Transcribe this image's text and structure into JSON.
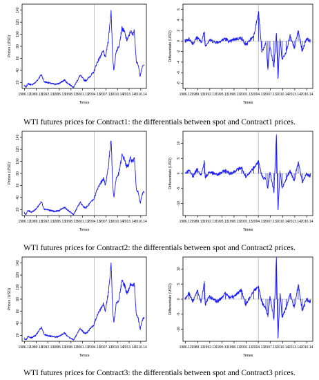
{
  "captions": [
    "WTI futures prices for Contract1: the differentials between spot and Contract1 prices.",
    "WTI futures prices for Contract2: the differentials between spot and Contract2 prices.",
    "WTI futures prices for Contract3: the differentials between spot and Contract3 prices."
  ],
  "chart_data": [
    {
      "type": "line",
      "panel": "price",
      "contract": "Contract1",
      "xlabel": "Times",
      "ylabel": "Prices (USD)",
      "ylim": [
        10,
        150
      ],
      "yticks": [
        20,
        40,
        60,
        80,
        100,
        120,
        140
      ],
      "xticks": [
        "1986.12",
        "1989.13",
        "1992.13",
        "1995.13",
        "1998.13",
        "2001.13",
        "2004.13",
        "2007.13",
        "2010.14",
        "2013.14",
        "2016.14"
      ],
      "vline_at": "2004.13",
      "series": [
        {
          "color": "#1a1aff",
          "x": [
            1986.0,
            1986.5,
            1987.0,
            1988.0,
            1989.0,
            1990.5,
            1990.8,
            1991.2,
            1992.0,
            1993.0,
            1994.0,
            1995.0,
            1996.5,
            1997.0,
            1998.8,
            1999.5,
            2000.5,
            2001.5,
            2002.0,
            2003.0,
            2004.0,
            2004.8,
            2005.7,
            2006.5,
            2007.0,
            2007.8,
            2008.5,
            2008.9,
            2009.2,
            2009.8,
            2010.5,
            2011.3,
            2012.0,
            2012.5,
            2013.0,
            2013.5,
            2014.0,
            2014.5,
            2015.0,
            2015.5,
            2016.0,
            2016.5,
            2017.0
          ],
          "y": [
            15,
            12,
            18,
            16,
            20,
            33,
            28,
            21,
            20,
            18,
            17,
            18,
            24,
            20,
            12,
            20,
            32,
            24,
            23,
            30,
            37,
            52,
            63,
            72,
            60,
            92,
            140,
            60,
            40,
            72,
            80,
            110,
            103,
            90,
            95,
            105,
            100,
            105,
            55,
            48,
            30,
            45,
            50
          ]
        }
      ]
    },
    {
      "type": "line",
      "panel": "differentials",
      "contract": "Contract1",
      "xlabel": "Times",
      "ylabel": "Differentials (USD)",
      "ylim": [
        -9,
        7
      ],
      "yticks": [
        -8,
        -6,
        -4,
        -2,
        0,
        2,
        4,
        6
      ],
      "xticks": [
        "1986.12",
        "1989.13",
        "1992.13",
        "1995.13",
        "1998.13",
        "2001.13",
        "2004.13",
        "2007.13",
        "2010.14",
        "2013.14",
        "2016.14"
      ],
      "vline_at": "2004.13",
      "series": [
        {
          "color": "#1a1aff",
          "x": [
            1986.0,
            1987.0,
            1988.0,
            1989.0,
            1990.0,
            1990.8,
            1991.0,
            1992.0,
            1994.0,
            1996.0,
            1997.0,
            1998.0,
            2000.0,
            2001.0,
            2003.0,
            2004.2,
            2005.0,
            2006.0,
            2006.5,
            2007.0,
            2008.0,
            2008.6,
            2009.0,
            2009.5,
            2010.0,
            2011.0,
            2012.0,
            2013.0,
            2014.0,
            2015.0,
            2016.0,
            2017.0
          ],
          "y": [
            0,
            0.4,
            -0.5,
            0.8,
            -0.3,
            1.8,
            -1.0,
            0.2,
            -0.3,
            0.5,
            -0.2,
            0.3,
            0.6,
            -0.8,
            1.0,
            5.5,
            -2.0,
            -0.5,
            -5.5,
            -1.0,
            -5.0,
            1.5,
            -7.2,
            0.5,
            -3.5,
            -2.0,
            1.0,
            -1.5,
            2.0,
            -2.0,
            0.5,
            0
          ]
        }
      ]
    },
    {
      "type": "line",
      "panel": "price",
      "contract": "Contract2",
      "xlabel": "Times",
      "ylabel": "Prices (USD)",
      "ylim": [
        10,
        150
      ],
      "yticks": [
        20,
        40,
        60,
        80,
        100,
        120,
        140
      ],
      "xticks": [
        "1986.12",
        "1989.13",
        "1992.13",
        "1995.13",
        "1998.13",
        "2001.13",
        "2004.13",
        "2007.13",
        "2010.14",
        "2013.14",
        "2016.14"
      ],
      "vline_at": "2004.13",
      "series": [
        {
          "color": "#1a1aff",
          "x": [
            1986.0,
            1986.5,
            1987.0,
            1988.0,
            1989.0,
            1990.5,
            1990.8,
            1991.2,
            1992.0,
            1993.0,
            1994.0,
            1995.0,
            1996.5,
            1997.0,
            1998.8,
            1999.5,
            2000.5,
            2001.5,
            2002.0,
            2003.0,
            2004.0,
            2004.8,
            2005.7,
            2006.5,
            2007.0,
            2007.8,
            2008.5,
            2008.9,
            2009.2,
            2009.8,
            2010.5,
            2011.3,
            2012.0,
            2012.5,
            2013.0,
            2013.5,
            2014.0,
            2014.5,
            2015.0,
            2015.5,
            2016.0,
            2016.5,
            2017.0
          ],
          "y": [
            15,
            12,
            18,
            16,
            20,
            33,
            28,
            21,
            20,
            18,
            17,
            18,
            24,
            20,
            12,
            20,
            32,
            24,
            23,
            30,
            37,
            52,
            63,
            72,
            60,
            92,
            140,
            60,
            40,
            72,
            80,
            110,
            103,
            90,
            95,
            105,
            100,
            105,
            55,
            48,
            30,
            45,
            50
          ]
        }
      ]
    },
    {
      "type": "line",
      "panel": "differentials",
      "contract": "Contract2",
      "xlabel": "Times",
      "ylabel": "Differentials (USD)",
      "ylim": [
        -14,
        14
      ],
      "yticks": [
        -10,
        -5,
        0,
        5,
        10
      ],
      "xticks": [
        "1986.12",
        "1989.13",
        "1992.13",
        "1995.13",
        "1998.13",
        "2001.13",
        "2004.13",
        "2007.13",
        "2010.14",
        "2013.14",
        "2016.14"
      ],
      "vline_at": "2004.13",
      "series": [
        {
          "color": "#1a1aff",
          "x": [
            1986.0,
            1987.0,
            1988.0,
            1989.0,
            1990.0,
            1990.8,
            1991.0,
            1992.0,
            1994.0,
            1996.0,
            1997.0,
            1998.0,
            2000.0,
            2001.0,
            2003.0,
            2004.2,
            2005.0,
            2006.0,
            2006.5,
            2007.0,
            2008.0,
            2008.6,
            2009.0,
            2009.5,
            2010.0,
            2011.0,
            2012.0,
            2013.0,
            2014.0,
            2015.0,
            2016.0,
            2017.0
          ],
          "y": [
            0,
            1.0,
            -1.0,
            1.5,
            -0.5,
            4.0,
            -1.5,
            0.5,
            -0.5,
            1.0,
            0,
            0.5,
            2.0,
            -1.5,
            2.0,
            4.0,
            -1.0,
            -2.0,
            -5.0,
            0.5,
            -6.0,
            13.0,
            -12.0,
            1.0,
            -5.0,
            -2.0,
            1.0,
            -2.5,
            4.0,
            -3.0,
            0,
            -1.0
          ]
        }
      ]
    },
    {
      "type": "line",
      "panel": "price",
      "contract": "Contract3",
      "xlabel": "Times",
      "ylabel": "Prices (USD)",
      "ylim": [
        10,
        150
      ],
      "yticks": [
        20,
        40,
        60,
        80,
        100,
        120,
        140
      ],
      "xticks": [
        "1986.12",
        "1989.13",
        "1992.13",
        "1995.13",
        "1998.13",
        "2001.13",
        "2004.13",
        "2007.13",
        "2010.14",
        "2013.14",
        "2016.14"
      ],
      "vline_at": "2004.13",
      "series": [
        {
          "color": "#1a1aff",
          "x": [
            1986.0,
            1986.5,
            1987.0,
            1988.0,
            1989.0,
            1990.5,
            1990.8,
            1991.2,
            1992.0,
            1993.0,
            1994.0,
            1995.0,
            1996.5,
            1997.0,
            1998.8,
            1999.5,
            2000.5,
            2001.5,
            2002.0,
            2003.0,
            2004.0,
            2004.8,
            2005.7,
            2006.5,
            2007.0,
            2007.8,
            2008.5,
            2008.9,
            2009.2,
            2009.8,
            2010.5,
            2011.3,
            2012.0,
            2012.5,
            2013.0,
            2013.5,
            2014.0,
            2014.5,
            2015.0,
            2015.5,
            2016.0,
            2016.5,
            2017.0
          ],
          "y": [
            15,
            12,
            18,
            16,
            20,
            33,
            28,
            21,
            20,
            18,
            17,
            18,
            24,
            20,
            12,
            20,
            32,
            24,
            23,
            30,
            37,
            52,
            63,
            72,
            60,
            92,
            140,
            60,
            40,
            72,
            80,
            110,
            103,
            90,
            95,
            105,
            100,
            105,
            55,
            48,
            30,
            45,
            50
          ]
        }
      ]
    },
    {
      "type": "line",
      "panel": "differentials",
      "contract": "Contract3",
      "xlabel": "Times",
      "ylabel": "Differentials (USD)",
      "ylim": [
        -14,
        14
      ],
      "yticks": [
        -10,
        -5,
        0,
        5,
        10
      ],
      "xticks": [
        "1986.12",
        "1989.13",
        "1992.13",
        "1995.13",
        "1998.13",
        "2001.13",
        "2004.13",
        "2007.13",
        "2010.14",
        "2013.14",
        "2016.14"
      ],
      "vline_at": "2004.13",
      "series": [
        {
          "color": "#1a1aff",
          "x": [
            1986.0,
            1987.0,
            1988.0,
            1989.0,
            1990.0,
            1990.8,
            1991.0,
            1992.0,
            1994.0,
            1996.0,
            1997.0,
            1998.0,
            2000.0,
            2001.0,
            2003.0,
            2004.2,
            2005.0,
            2006.0,
            2006.5,
            2007.0,
            2008.0,
            2008.6,
            2009.0,
            2009.5,
            2010.0,
            2011.0,
            2012.0,
            2013.0,
            2014.0,
            2015.0,
            2016.0,
            2017.0
          ],
          "y": [
            0,
            2.0,
            -1.0,
            3.0,
            -1.0,
            6.0,
            -2.0,
            1.0,
            -1.0,
            2.0,
            0.5,
            1.0,
            3.0,
            -2.0,
            3.0,
            4.0,
            -1.0,
            -3.0,
            -6.0,
            1.0,
            -7.0,
            14.0,
            -13.0,
            2.0,
            -6.0,
            -3.0,
            2.0,
            -3.0,
            5.0,
            -4.0,
            0,
            -1.0
          ]
        }
      ]
    }
  ]
}
